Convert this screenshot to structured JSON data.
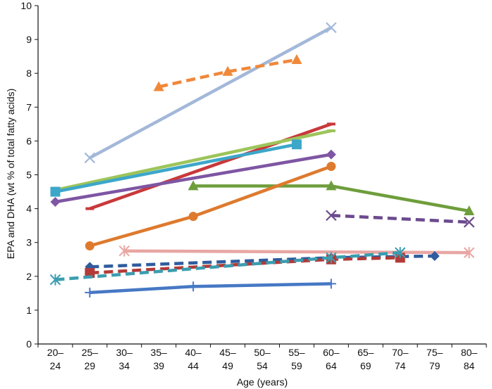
{
  "chart_data": {
    "type": "line",
    "title": "",
    "xlabel": "Age (years)",
    "ylabel": "EPA and DHA (wt % of total fatty acids)",
    "ylim": [
      0,
      10
    ],
    "grid": false,
    "y_ticks": [
      "0",
      "1",
      "2",
      "3",
      "4",
      "5",
      "6",
      "7",
      "8",
      "9",
      "10"
    ],
    "categories": [
      {
        "line1": "20–",
        "line2": "24"
      },
      {
        "line1": "25–",
        "line2": "29"
      },
      {
        "line1": "30–",
        "line2": "34"
      },
      {
        "line1": "35–",
        "line2": "39"
      },
      {
        "line1": "40–",
        "line2": "44"
      },
      {
        "line1": "45–",
        "line2": "49"
      },
      {
        "line1": "50–",
        "line2": "54"
      },
      {
        "line1": "55–",
        "line2": "59"
      },
      {
        "line1": "60–",
        "line2": "64"
      },
      {
        "line1": "65–",
        "line2": "69"
      },
      {
        "line1": "70–",
        "line2": "74"
      },
      {
        "line1": "75–",
        "line2": "79"
      },
      {
        "line1": "80–",
        "line2": "84"
      }
    ],
    "series": [
      {
        "id": "s1",
        "color": "#A3B8D9",
        "dashed": false,
        "marker": "x",
        "points": [
          [
            1,
            5.5
          ],
          [
            8,
            9.35
          ]
        ]
      },
      {
        "id": "s2",
        "color": "#F0883A",
        "dashed": true,
        "marker": "triangle",
        "points": [
          [
            3,
            7.6
          ],
          [
            5,
            8.05
          ],
          [
            7,
            8.4
          ]
        ]
      },
      {
        "id": "s3",
        "color": "#C8393B",
        "dashed": false,
        "marker": "dash",
        "points": [
          [
            1,
            4.0
          ],
          [
            8,
            6.5
          ]
        ]
      },
      {
        "id": "s4",
        "color": "#9DC45A",
        "dashed": false,
        "marker": "dash",
        "points": [
          [
            0,
            4.55
          ],
          [
            8,
            6.3
          ]
        ]
      },
      {
        "id": "s5",
        "color": "#3CA7C9",
        "dashed": false,
        "marker": "square",
        "points": [
          [
            0,
            4.5
          ],
          [
            7,
            5.9
          ]
        ]
      },
      {
        "id": "s6",
        "color": "#7E56A3",
        "dashed": false,
        "marker": "diamond",
        "points": [
          [
            0,
            4.2
          ],
          [
            8,
            5.6
          ]
        ]
      },
      {
        "id": "s7",
        "color": "#6E9E3C",
        "dashed": false,
        "marker": "triangle",
        "points": [
          [
            4,
            4.67
          ],
          [
            8,
            4.67
          ],
          [
            12,
            3.93
          ]
        ]
      },
      {
        "id": "s8",
        "color": "#DE7A2E",
        "dashed": false,
        "marker": "circle",
        "points": [
          [
            1,
            2.9
          ],
          [
            4,
            3.77
          ],
          [
            8,
            5.25
          ]
        ]
      },
      {
        "id": "s9",
        "color": "#6C4A8E",
        "dashed": true,
        "marker": "x",
        "points": [
          [
            8,
            3.8
          ],
          [
            12,
            3.6
          ]
        ]
      },
      {
        "id": "s10",
        "color": "#E8A6A3",
        "dashed": false,
        "marker": "star",
        "points": [
          [
            2,
            2.75
          ],
          [
            12,
            2.7
          ]
        ]
      },
      {
        "id": "s11",
        "color": "#2F5C9E",
        "dashed": true,
        "marker": "diamond",
        "points": [
          [
            1,
            2.28
          ],
          [
            8,
            2.55
          ],
          [
            11,
            2.6
          ]
        ]
      },
      {
        "id": "s12",
        "color": "#B33A37",
        "dashed": true,
        "marker": "square",
        "points": [
          [
            1,
            2.1
          ],
          [
            8,
            2.5
          ],
          [
            10,
            2.55
          ]
        ]
      },
      {
        "id": "s13",
        "color": "#3B9DB0",
        "dashed": true,
        "marker": "star",
        "points": [
          [
            0,
            1.9
          ],
          [
            8,
            2.55
          ],
          [
            10,
            2.7
          ]
        ]
      },
      {
        "id": "s14",
        "color": "#4678C4",
        "dashed": false,
        "marker": "plus",
        "points": [
          [
            1,
            1.52
          ],
          [
            4,
            1.7
          ],
          [
            8,
            1.78
          ]
        ]
      }
    ]
  }
}
